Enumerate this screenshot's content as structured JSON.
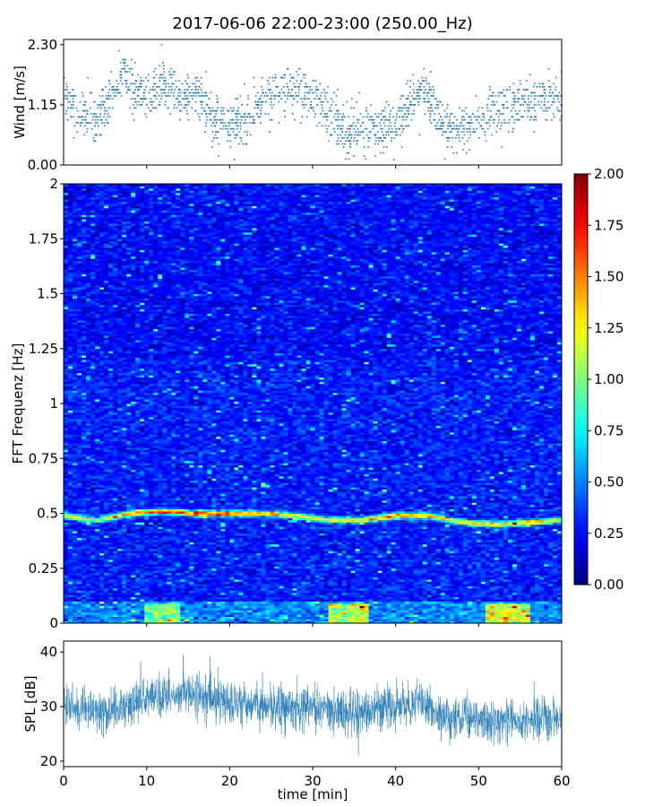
{
  "title": "2017-06-06 22:00-23:00 (250.00_Hz)",
  "chart_data": [
    {
      "id": "wind",
      "type": "scatter",
      "ylabel": "Wind [m/s]",
      "xlim": [
        0,
        60
      ],
      "ylim": [
        0,
        2.4
      ],
      "yticks": [
        "0.00",
        "1.15",
        "2.30"
      ],
      "ytick_values": [
        0,
        1.15,
        2.3
      ],
      "color": "#1f77b4",
      "trend_x": [
        0,
        2,
        4,
        6,
        7,
        8,
        10,
        12,
        14,
        16,
        18,
        20,
        22,
        24,
        26,
        28,
        30,
        32,
        34,
        36,
        38,
        40,
        42,
        43,
        44,
        46,
        48,
        50,
        52,
        54,
        56,
        58,
        60
      ],
      "trend_y": [
        1.3,
        1.0,
        0.8,
        1.3,
        1.8,
        1.6,
        1.3,
        1.6,
        1.3,
        1.4,
        0.9,
        0.8,
        0.9,
        1.3,
        1.4,
        1.4,
        1.3,
        1.0,
        0.6,
        0.7,
        0.7,
        0.8,
        1.2,
        1.5,
        1.3,
        0.7,
        0.7,
        0.8,
        1.0,
        1.2,
        1.2,
        1.3,
        1.3
      ]
    },
    {
      "id": "spectrogram",
      "type": "heatmap",
      "ylabel": "FFT Frequenz [Hz]",
      "xlim": [
        0,
        60
      ],
      "ylim": [
        0,
        2
      ],
      "yticks": [
        "0",
        "0.25",
        "0.5",
        "0.75",
        "1",
        "1.25",
        "1.5",
        "1.75",
        "2"
      ],
      "ytick_values": [
        0,
        0.25,
        0.5,
        0.75,
        1,
        1.25,
        1.5,
        1.75,
        2
      ],
      "colormap": "jet",
      "clim": [
        0,
        2
      ],
      "colorbar_ticks": [
        "0.00",
        "0.25",
        "0.50",
        "0.75",
        "1.00",
        "1.25",
        "1.50",
        "1.75",
        "2.00"
      ],
      "colorbar_tick_values": [
        0,
        0.25,
        0.5,
        0.75,
        1,
        1.25,
        1.5,
        1.75,
        2
      ],
      "ridge_x": [
        0,
        4,
        8,
        12,
        16,
        20,
        24,
        28,
        32,
        36,
        40,
        44,
        48,
        52,
        56,
        60
      ],
      "ridge_freq": [
        0.49,
        0.47,
        0.5,
        0.51,
        0.5,
        0.5,
        0.5,
        0.49,
        0.47,
        0.47,
        0.49,
        0.49,
        0.46,
        0.45,
        0.46,
        0.47
      ],
      "ridge_amp": [
        1.0,
        0.8,
        1.2,
        1.4,
        1.5,
        1.3,
        1.1,
        1.0,
        1.0,
        1.1,
        1.3,
        1.2,
        1.0,
        1.1,
        1.2,
        0.9
      ],
      "background_level": 0.3,
      "low_freq_patches": [
        {
          "x0": 32,
          "x1": 37,
          "amp": 0.8
        },
        {
          "x0": 51,
          "x1": 56,
          "amp": 0.85
        },
        {
          "x0": 10,
          "x1": 14,
          "amp": 0.6
        }
      ]
    },
    {
      "id": "spl",
      "type": "line",
      "ylabel": "SPL [dB]",
      "xlabel": "time [min]",
      "xlim": [
        0,
        60
      ],
      "ylim": [
        19,
        42
      ],
      "xticks": [
        "0",
        "10",
        "20",
        "30",
        "40",
        "50",
        "60"
      ],
      "xtick_values": [
        0,
        10,
        20,
        30,
        40,
        50,
        60
      ],
      "yticks": [
        "20",
        "30",
        "40"
      ],
      "ytick_values": [
        20,
        30,
        40
      ],
      "color": "#1f77b4",
      "trend_x": [
        0,
        5,
        10,
        15,
        20,
        25,
        30,
        35,
        40,
        43,
        46,
        50,
        55,
        60
      ],
      "trend_y": [
        30.5,
        28.5,
        31.5,
        32.5,
        31,
        30,
        30,
        28.5,
        30,
        31,
        28,
        27.5,
        27.5,
        28
      ]
    }
  ]
}
